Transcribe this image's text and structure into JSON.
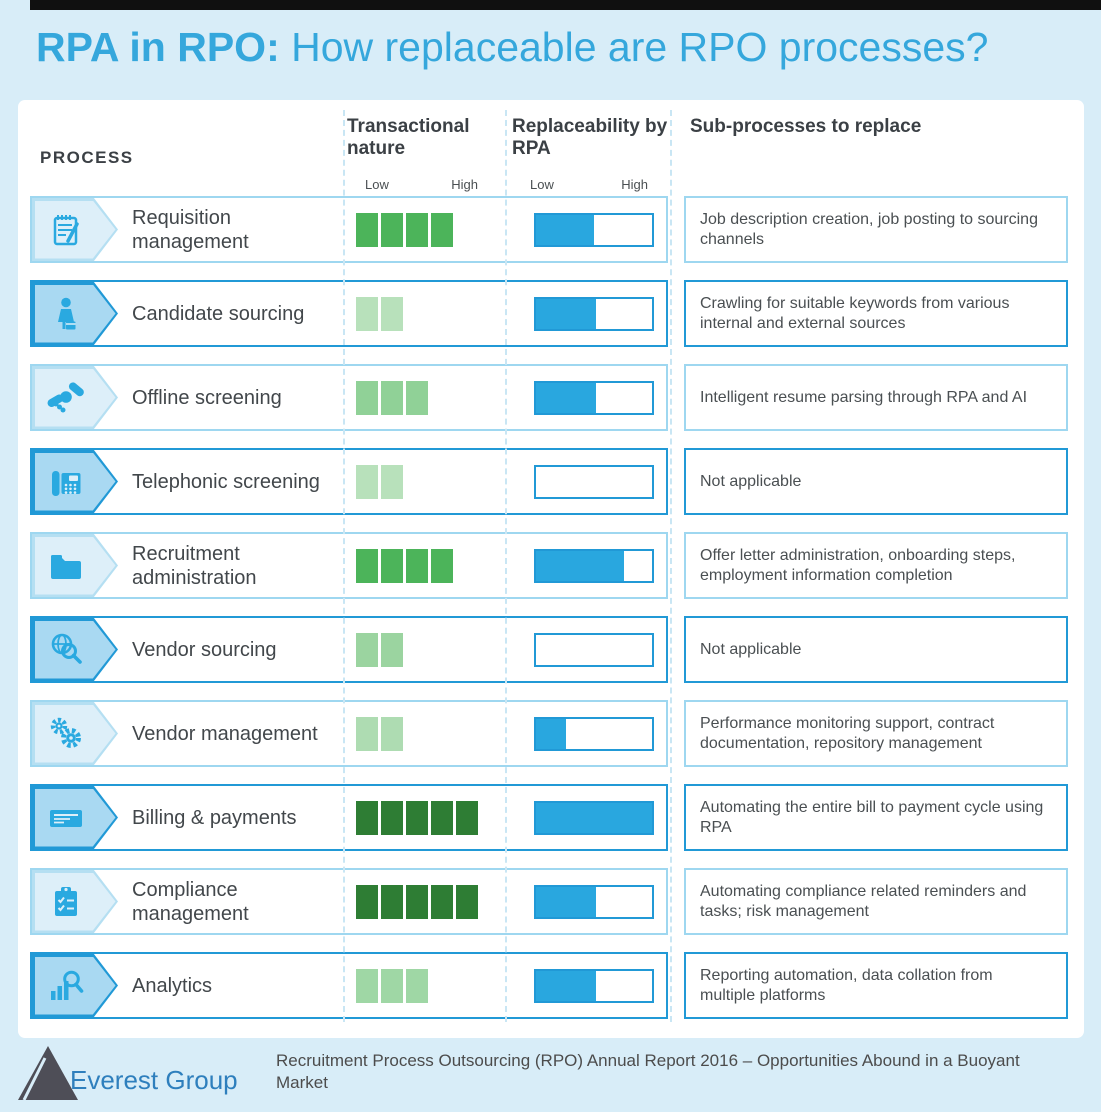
{
  "page": {
    "title_bold": "RPA in RPO:",
    "title_rest": " How replaceable are RPO processes?"
  },
  "header": {
    "process": "PROCESS",
    "col_transactional": "Transactional nature",
    "col_replaceability": "Replaceability by RPA",
    "col_subprocesses": "Sub-processes to replace",
    "low": "Low",
    "high": "High"
  },
  "colors": {
    "accent_blue": "#29a7df",
    "border_blue_strong": "#2199d6",
    "border_blue_light": "#9ed7f0",
    "background": "#d8edf8",
    "panel": "#ffffff",
    "title_blue": "#35a7dc",
    "green_medium": "#4cb45a",
    "green_light": "#90d197",
    "green_lightest": "#b8e1bb",
    "green_dark": "#2e7d34"
  },
  "rows": [
    {
      "name": "Requisition management",
      "icon": "notepad-icon",
      "transactional_blocks": 4,
      "block_color": "#4cb45a",
      "replaceability_pct": 50,
      "subprocess": "Job description creation, job posting to sourcing channels"
    },
    {
      "name": "Candidate sourcing",
      "icon": "person-icon",
      "transactional_blocks": 2,
      "block_color": "#b8e1bb",
      "replaceability_pct": 52,
      "subprocess": "Crawling for suitable keywords from various internal and external sources"
    },
    {
      "name": "Offline screening",
      "icon": "handshake-icon",
      "transactional_blocks": 3,
      "block_color": "#90d197",
      "replaceability_pct": 52,
      "subprocess": "Intelligent resume parsing through RPA and AI"
    },
    {
      "name": "Telephonic screening",
      "icon": "phone-icon",
      "transactional_blocks": 2,
      "block_color": "#b8e1bb",
      "replaceability_pct": 0,
      "subprocess": "Not applicable"
    },
    {
      "name": "Recruitment administration",
      "icon": "folder-icon",
      "transactional_blocks": 4,
      "block_color": "#4cb45a",
      "replaceability_pct": 76,
      "subprocess": "Offer letter administration, onboarding steps, employment information completion"
    },
    {
      "name": "Vendor sourcing",
      "icon": "globe-search-icon",
      "transactional_blocks": 2,
      "block_color": "#9bd4a0",
      "replaceability_pct": 0,
      "subprocess": "Not applicable"
    },
    {
      "name": "Vendor management",
      "icon": "gears-icon",
      "transactional_blocks": 2,
      "block_color": "#aedcb2",
      "replaceability_pct": 26,
      "subprocess": "Performance monitoring support, contract documentation, repository management"
    },
    {
      "name": "Billing & payments",
      "icon": "cheque-icon",
      "transactional_blocks": 5,
      "block_color": "#2e7d34",
      "replaceability_pct": 100,
      "subprocess": "Automating the entire bill to payment cycle using RPA"
    },
    {
      "name": "Compliance management",
      "icon": "clipboard-icon",
      "transactional_blocks": 5,
      "block_color": "#2e7d34",
      "replaceability_pct": 52,
      "subprocess": "Automating compliance related reminders and tasks; risk management"
    },
    {
      "name": "Analytics",
      "icon": "chart-search-icon",
      "transactional_blocks": 3,
      "block_color": "#9fd7a5",
      "replaceability_pct": 52,
      "subprocess": "Reporting automation, data collation from multiple platforms"
    }
  ],
  "chart_data": {
    "type": "table",
    "title": "RPA in RPO: How replaceable are RPO processes?",
    "columns": [
      "Process",
      "Transactional nature (blocks of 5, Low-High)",
      "Replaceability by RPA (% of Low-High bar)",
      "Sub-processes to replace"
    ],
    "rows": [
      [
        "Requisition management",
        4,
        50,
        "Job description creation, job posting to sourcing channels"
      ],
      [
        "Candidate sourcing",
        2,
        52,
        "Crawling for suitable keywords from various internal and external sources"
      ],
      [
        "Offline screening",
        3,
        52,
        "Intelligent resume parsing through RPA and AI"
      ],
      [
        "Telephonic screening",
        2,
        0,
        "Not applicable"
      ],
      [
        "Recruitment administration",
        4,
        76,
        "Offer letter administration, onboarding steps, employment information completion"
      ],
      [
        "Vendor sourcing",
        2,
        0,
        "Not applicable"
      ],
      [
        "Vendor management",
        2,
        26,
        "Performance monitoring support, contract documentation, repository management"
      ],
      [
        "Billing & payments",
        5,
        100,
        "Automating the entire bill to payment cycle using RPA"
      ],
      [
        "Compliance management",
        5,
        52,
        "Automating compliance related reminders and tasks; risk management"
      ],
      [
        "Analytics",
        3,
        52,
        "Reporting automation, data collation from multiple platforms"
      ]
    ],
    "scales": {
      "transactional_nature": [
        "Low",
        "High"
      ],
      "replaceability_by_rpa": [
        "Low",
        "High"
      ]
    }
  },
  "footer": {
    "logo_text": "Everest Group",
    "source": "Recruitment Process Outsourcing (RPO) Annual Report 2016 – Opportunities Abound in a Buoyant Market"
  }
}
